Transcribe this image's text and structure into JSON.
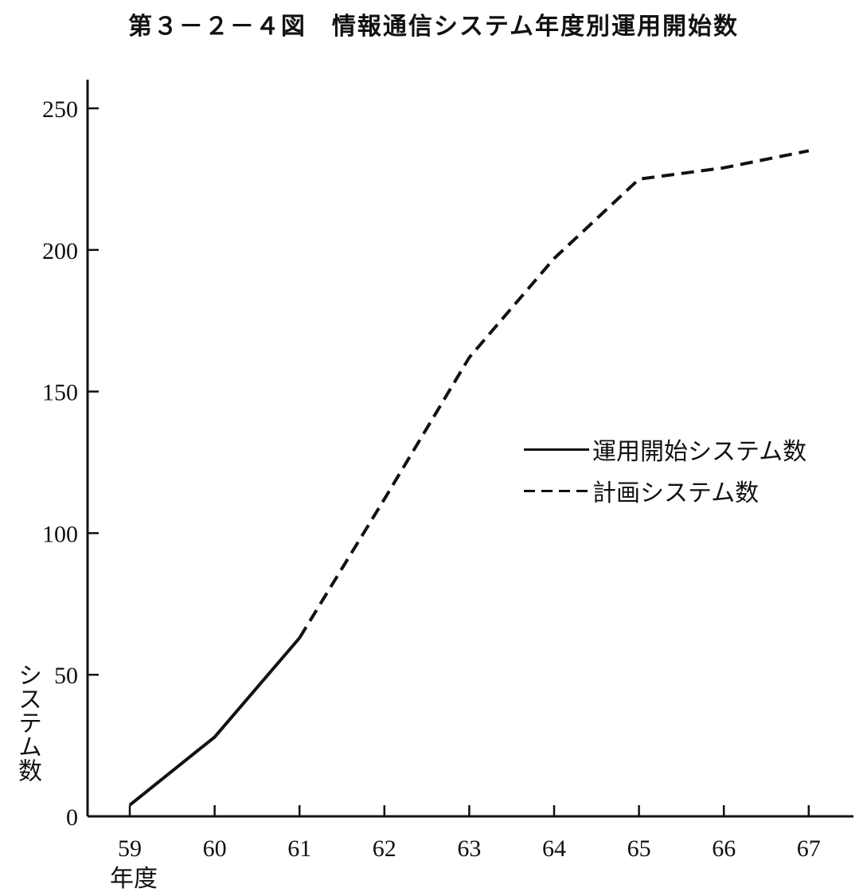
{
  "title": "第３－２－４図　情報通信システム年度別運用開始数",
  "chart_data": {
    "type": "line",
    "x": [
      "59",
      "60",
      "61",
      "62",
      "63",
      "64",
      "65",
      "66",
      "67"
    ],
    "xunit": "年度",
    "ylabel": "システム数",
    "yticks": [
      "0",
      "50",
      "100",
      "150",
      "200",
      "250"
    ],
    "ylim": [
      0,
      260
    ],
    "series": [
      {
        "name": "運用開始システム数",
        "style": "solid",
        "color": "#111111",
        "points": [
          [
            59,
            4
          ],
          [
            60,
            28
          ],
          [
            61,
            63
          ]
        ]
      },
      {
        "name": "計画システム数",
        "style": "dashed",
        "color": "#111111",
        "points": [
          [
            61,
            63
          ],
          [
            62,
            112
          ],
          [
            63,
            162
          ],
          [
            64,
            197
          ],
          [
            65,
            225
          ],
          [
            66,
            229
          ],
          [
            67,
            235
          ]
        ]
      }
    ],
    "grid": false,
    "legend_position": "right-middle"
  }
}
